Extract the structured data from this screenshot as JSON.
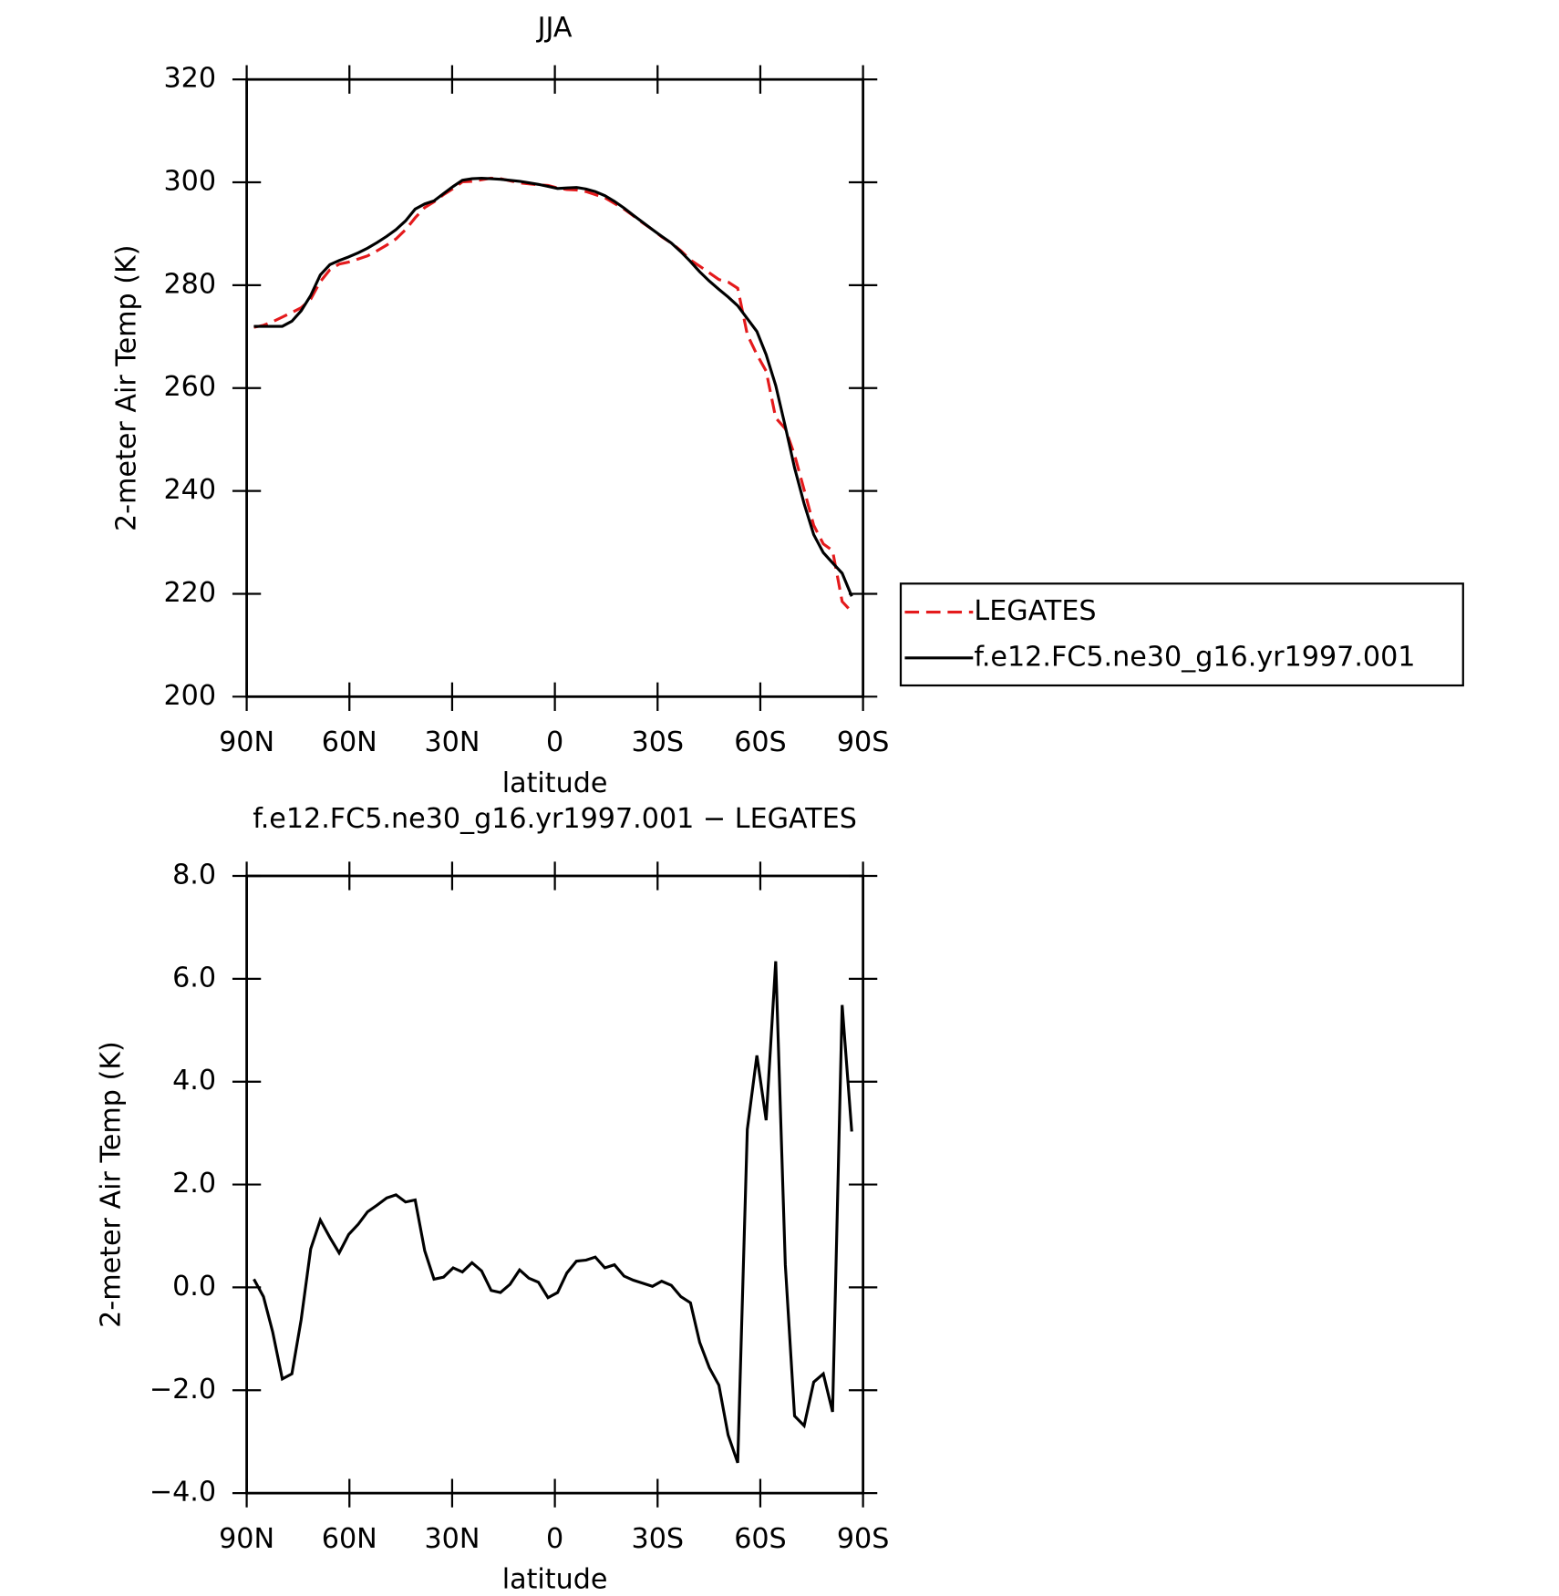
{
  "chart_data": [
    {
      "type": "line",
      "title": "JJA",
      "x_label": "latitude",
      "y_label": "2-meter Air Temp (K)",
      "xlim": [
        90,
        -90
      ],
      "xticks": [
        {
          "value": 90,
          "label": "90N"
        },
        {
          "value": 60,
          "label": "60N"
        },
        {
          "value": 30,
          "label": "30N"
        },
        0,
        {
          "value": -30,
          "label": "30S"
        },
        {
          "value": -60,
          "label": "60S"
        },
        {
          "value": -90,
          "label": "90S"
        }
      ],
      "ylim": [
        200,
        320
      ],
      "yticks": [
        200,
        220,
        240,
        260,
        280,
        300,
        320
      ],
      "legend": "right",
      "x": [
        87.9,
        85.1,
        82.4,
        79.6,
        76.8,
        74.1,
        71.3,
        68.5,
        65.7,
        63.0,
        60.2,
        57.4,
        54.7,
        51.9,
        49.1,
        46.4,
        43.6,
        40.8,
        38.0,
        35.3,
        32.5,
        29.7,
        27.0,
        24.2,
        21.4,
        18.6,
        15.9,
        13.1,
        10.3,
        7.6,
        4.8,
        2.0,
        -0.8,
        -3.5,
        -6.3,
        -9.1,
        -11.8,
        -14.6,
        -17.4,
        -20.2,
        -22.9,
        -25.7,
        -28.5,
        -31.2,
        -34.0,
        -36.8,
        -39.6,
        -42.3,
        -45.1,
        -47.9,
        -50.6,
        -53.4,
        -56.2,
        -59.0,
        -61.7,
        -64.5,
        -67.3,
        -70.0,
        -72.8,
        -75.6,
        -78.4,
        -81.1,
        -83.9,
        -86.7
      ],
      "series": [
        {
          "name": "LEGATES",
          "color": "#e41a1c",
          "dash": true,
          "values": [
            271.8,
            272.2,
            272.9,
            273.8,
            274.7,
            275.6,
            277.3,
            280.7,
            283.0,
            284.1,
            284.5,
            285.1,
            285.7,
            286.7,
            287.8,
            289.0,
            290.8,
            293.1,
            295.1,
            296.2,
            297.6,
            298.8,
            300.1,
            300.2,
            300.5,
            300.8,
            300.7,
            300.3,
            299.9,
            299.7,
            299.5,
            299.4,
            298.9,
            298.6,
            298.5,
            298.2,
            297.6,
            297.0,
            295.9,
            294.8,
            293.5,
            292.1,
            290.8,
            289.4,
            288.2,
            286.7,
            284.9,
            283.7,
            282.4,
            281.1,
            280.6,
            279.4,
            270.4,
            266.5,
            263.3,
            254.2,
            252.1,
            247.0,
            240.2,
            233.3,
            229.7,
            228.4,
            218.5,
            216.5
          ]
        },
        {
          "name": "f.e12.FC5.ne30_g16.yr1997.001",
          "color": "#000000",
          "dash": false,
          "values": [
            272,
            272,
            272,
            272,
            273,
            275,
            278,
            282,
            284,
            284.8,
            285.5,
            286.3,
            287.2,
            288.3,
            289.5,
            290.8,
            292.5,
            294.8,
            295.8,
            296.4,
            297.8,
            299.2,
            300.4,
            300.7,
            300.8,
            300.7,
            300.6,
            300.4,
            300.2,
            299.9,
            299.6,
            299.2,
            298.8,
            298.9,
            299.0,
            298.7,
            298.2,
            297.4,
            296.3,
            295.0,
            293.6,
            292.2,
            290.8,
            289.5,
            288.2,
            286.5,
            284.6,
            282.6,
            280.8,
            279.2,
            277.7,
            276.0,
            273.5,
            271.0,
            266.5,
            260.5,
            252.5,
            244.5,
            237.5,
            231.5,
            228.0,
            226.0,
            224.0,
            219.5
          ]
        }
      ]
    },
    {
      "type": "line",
      "title": "f.e12.FC5.ne30_g16.yr1997.001 − LEGATES",
      "x_label": "latitude",
      "y_label": "2-meter Air Temp (K)",
      "xlim": [
        90,
        -90
      ],
      "xticks": [
        {
          "value": 90,
          "label": "90N"
        },
        {
          "value": 60,
          "label": "60N"
        },
        {
          "value": 30,
          "label": "30N"
        },
        0,
        {
          "value": -30,
          "label": "30S"
        },
        {
          "value": -60,
          "label": "60S"
        },
        {
          "value": -90,
          "label": "90S"
        }
      ],
      "ylim": [
        -4,
        8
      ],
      "yticks": [
        {
          "value": -4,
          "label": "−4.0"
        },
        {
          "value": -2,
          "label": "−2.0"
        },
        {
          "value": 0,
          "label": "0.0"
        },
        {
          "value": 2,
          "label": "2.0"
        },
        {
          "value": 4,
          "label": "4.0"
        },
        {
          "value": 6,
          "label": "6.0"
        },
        {
          "value": 8,
          "label": "8.0"
        }
      ],
      "x": [
        87.9,
        85.1,
        82.4,
        79.6,
        76.8,
        74.1,
        71.3,
        68.5,
        65.7,
        63.0,
        60.2,
        57.4,
        54.7,
        51.9,
        49.1,
        46.4,
        43.6,
        40.8,
        38.0,
        35.3,
        32.5,
        29.7,
        27.0,
        24.2,
        21.4,
        18.6,
        15.9,
        13.1,
        10.3,
        7.6,
        4.8,
        2.0,
        -0.8,
        -3.5,
        -6.3,
        -9.1,
        -11.8,
        -14.6,
        -17.4,
        -20.2,
        -22.9,
        -25.7,
        -28.5,
        -31.2,
        -34.0,
        -36.8,
        -39.6,
        -42.3,
        -45.1,
        -47.9,
        -50.6,
        -53.4,
        -56.2,
        -59.0,
        -61.7,
        -64.5,
        -67.3,
        -70.0,
        -72.8,
        -75.6,
        -78.4,
        -81.1,
        -83.9,
        -86.7
      ],
      "series": [
        {
          "color": "#000000",
          "dash": false,
          "values": [
            0.16,
            -0.18,
            -0.87,
            -1.78,
            -1.68,
            -0.63,
            0.75,
            1.31,
            0.97,
            0.67,
            1.03,
            1.23,
            1.47,
            1.6,
            1.74,
            1.8,
            1.66,
            1.7,
            0.71,
            0.16,
            0.2,
            0.38,
            0.3,
            0.48,
            0.32,
            -0.06,
            -0.1,
            0.06,
            0.34,
            0.18,
            0.1,
            -0.2,
            -0.1,
            0.28,
            0.51,
            0.53,
            0.59,
            0.38,
            0.44,
            0.22,
            0.14,
            0.08,
            0.02,
            0.12,
            0.04,
            -0.18,
            -0.3,
            -1.07,
            -1.56,
            -1.9,
            -2.87,
            -3.41,
            3.07,
            4.51,
            3.25,
            6.34,
            0.44,
            -2.5,
            -2.69,
            -1.84,
            -1.68,
            -2.42,
            5.49,
            3.03
          ]
        }
      ]
    }
  ]
}
